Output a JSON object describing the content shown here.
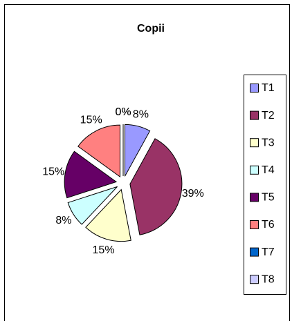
{
  "chart_data": {
    "type": "pie",
    "title": "Copii",
    "categories": [
      "T1",
      "T2",
      "T3",
      "T4",
      "T5",
      "T6",
      "T7",
      "T8"
    ],
    "values": [
      8,
      39,
      15,
      8,
      15,
      15,
      0,
      0
    ],
    "value_labels": [
      "8%",
      "39%",
      "15%",
      "8%",
      "15%",
      "15%",
      "0%",
      "0%"
    ],
    "colors": [
      "#9999ff",
      "#993366",
      "#ffffcc",
      "#ccffff",
      "#660066",
      "#ff8080",
      "#0066cc",
      "#ccccff"
    ],
    "legend": "right"
  }
}
